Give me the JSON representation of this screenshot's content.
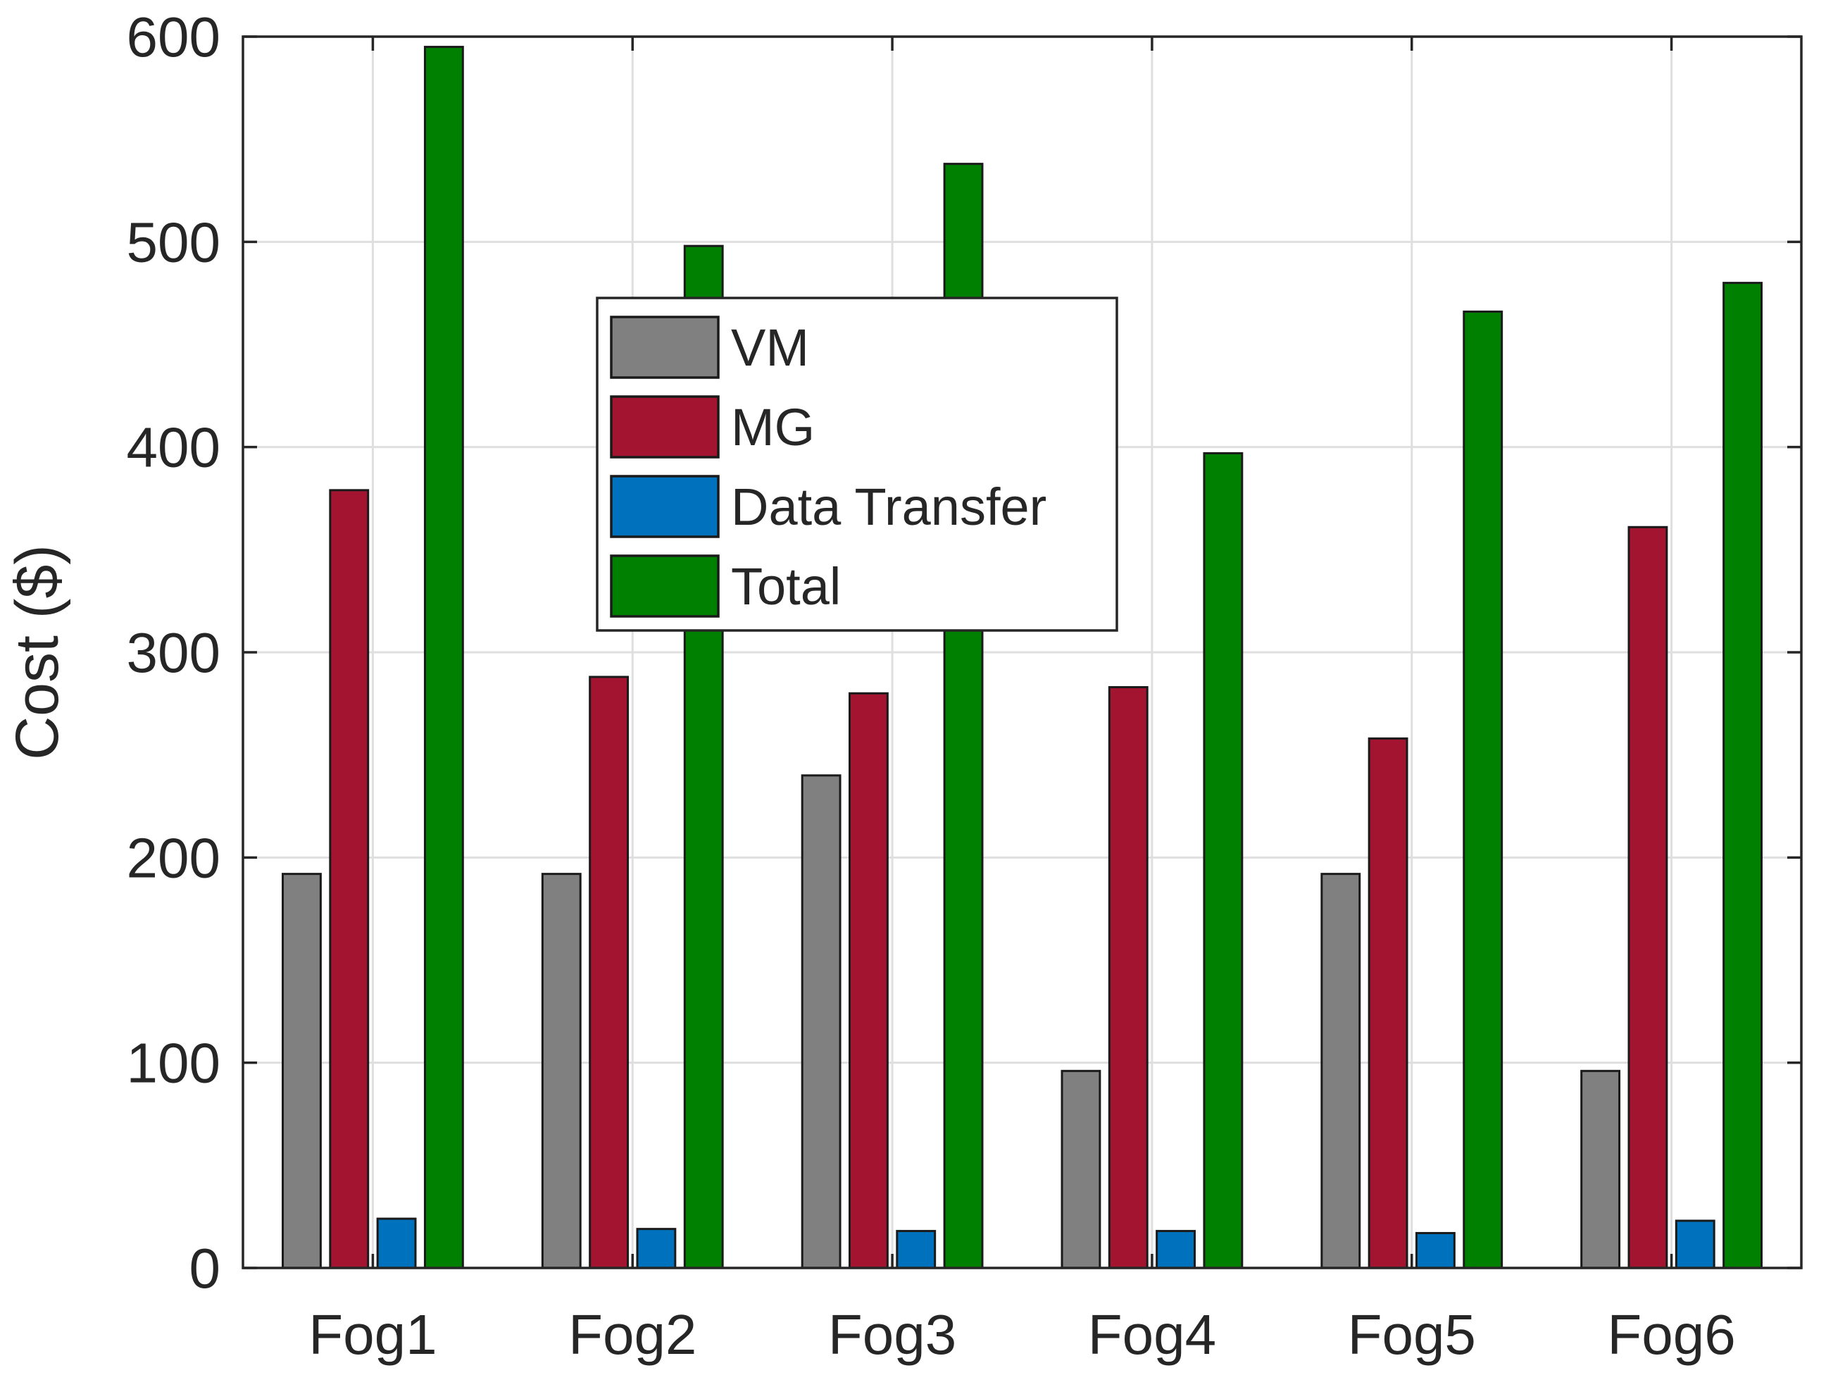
{
  "chart_data": {
    "type": "bar",
    "title": "",
    "xlabel": "",
    "ylabel": "Cost ($)",
    "ylim": [
      0,
      600
    ],
    "yticks": [
      "0",
      "100",
      "200",
      "300",
      "400",
      "500",
      "600"
    ],
    "categories": [
      "Fog1",
      "Fog2",
      "Fog3",
      "Fog4",
      "Fog5",
      "Fog6"
    ],
    "grid": true,
    "legend_position": "upper-center",
    "series": [
      {
        "name": "VM",
        "color": "#808080",
        "values": [
          192,
          192,
          240,
          96,
          192,
          96
        ]
      },
      {
        "name": "MG",
        "color": "#A2142F",
        "values": [
          379,
          288,
          280,
          283,
          258,
          361
        ]
      },
      {
        "name": "Data Transfer",
        "color": "#0072BD",
        "values": [
          24,
          19,
          18,
          18,
          17,
          23
        ]
      },
      {
        "name": "Total",
        "color": "#008000",
        "values": [
          595,
          498,
          538,
          397,
          466,
          480
        ]
      }
    ]
  }
}
